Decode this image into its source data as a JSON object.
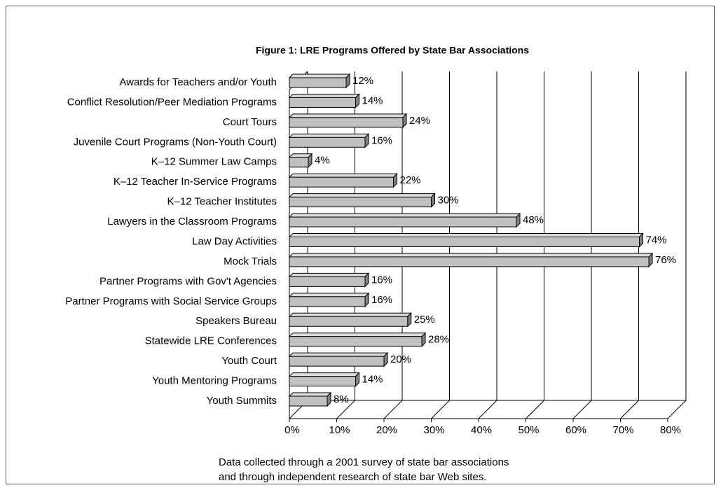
{
  "chart_data": {
    "type": "bar3d_horizontal",
    "title": "Figure 1: LRE Programs Offered by State Bar Associations",
    "categories": [
      "Awards for Teachers and/or Youth",
      "Conflict Resolution/Peer Mediation Programs",
      "Court Tours",
      "Juvenile Court Programs (Non-Youth Court)",
      "K–12 Summer Law Camps",
      "K–12 Teacher In-Service Programs",
      "K–12 Teacher Institutes",
      "Lawyers in the Classroom Programs",
      "Law Day Activities",
      "Mock Trials",
      "Partner Programs with Gov't Agencies",
      "Partner Programs with Social Service Groups",
      "Speakers Bureau",
      "Statewide LRE Conferences",
      "Youth Court",
      "Youth Mentoring Programs",
      "Youth Summits"
    ],
    "values": [
      12,
      14,
      24,
      16,
      4,
      22,
      30,
      48,
      74,
      76,
      16,
      16,
      25,
      28,
      20,
      14,
      8
    ],
    "value_labels": [
      "12%",
      "14%",
      "24%",
      "16%",
      "4%",
      "22%",
      "30%",
      "48%",
      "74%",
      "76%",
      "16%",
      "16%",
      "25%",
      "28%",
      "20%",
      "14%",
      "8%"
    ],
    "color": "#c0c0c0",
    "xlim": [
      0,
      80
    ],
    "xticks": [
      {
        "value": 0,
        "label": "0%"
      },
      {
        "value": 10,
        "label": "10%"
      },
      {
        "value": 20,
        "label": "20%"
      },
      {
        "value": 30,
        "label": "30%"
      },
      {
        "value": 40,
        "label": "40%"
      },
      {
        "value": 50,
        "label": "50%"
      },
      {
        "value": 60,
        "label": "60%"
      },
      {
        "value": 70,
        "label": "70%"
      },
      {
        "value": 80,
        "label": "80%"
      }
    ],
    "grid": true,
    "note": [
      "Data collected through a 2001 survey of state bar associations",
      "and through independent research of state bar Web sites."
    ]
  }
}
